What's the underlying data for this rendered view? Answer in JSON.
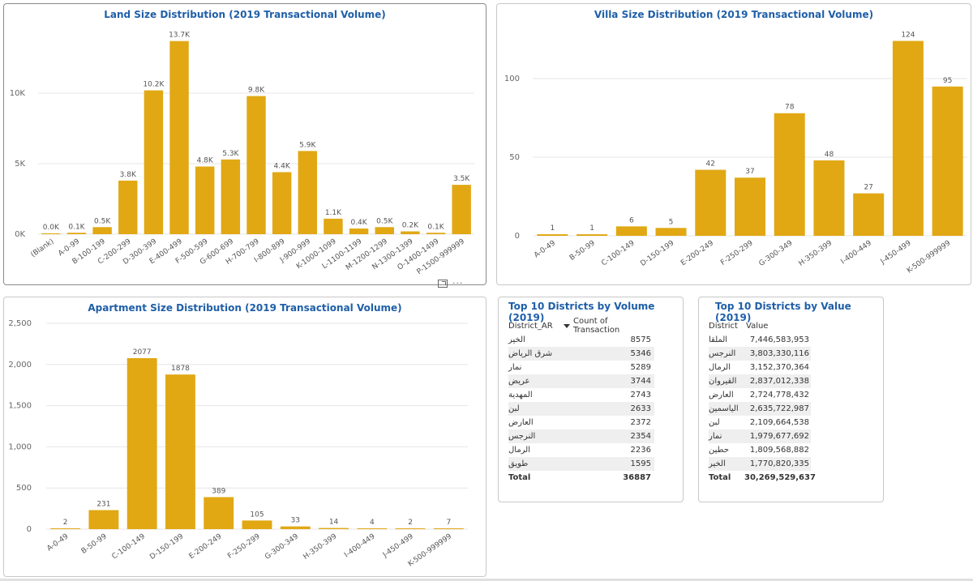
{
  "chart_data": [
    {
      "type": "bar",
      "title": "Land Size Distribution (2019 Transactional Volume)",
      "categories": [
        "(Blank)",
        "A-0-99",
        "B-100-199",
        "C-200-299",
        "D-300-399",
        "E-400-499",
        "F-500-599",
        "G-600-699",
        "H-700-799",
        "I-800-899",
        "J-900-999",
        "K-1000-1099",
        "L-1100-1199",
        "M-1200-1299",
        "N-1300-1399",
        "O-1400-1499",
        "P-1500-999999"
      ],
      "values": [
        0.03,
        0.1,
        0.5,
        3.8,
        10.2,
        13.7,
        4.8,
        5.3,
        9.8,
        4.4,
        5.9,
        1.1,
        0.4,
        0.5,
        0.2,
        0.1,
        3.5
      ],
      "data_labels": [
        "0.0K",
        "0.1K",
        "0.5K",
        "3.8K",
        "10.2K",
        "13.7K",
        "4.8K",
        "5.3K",
        "9.8K",
        "4.4K",
        "5.9K",
        "1.1K",
        "0.4K",
        "0.5K",
        "0.2K",
        "0.1K",
        "3.5K"
      ],
      "yticks": [
        0,
        5,
        10
      ],
      "ytick_labels": [
        "0K",
        "5K",
        "10K"
      ],
      "ylim": [
        0,
        14.6
      ],
      "xlabel": "",
      "ylabel": "",
      "grid": true
    },
    {
      "type": "bar",
      "title": "Villa Size Distribution (2019 Transactional Volume)",
      "categories": [
        "A-0-49",
        "B-50-99",
        "C-100-149",
        "D-150-199",
        "E-200-249",
        "F-250-299",
        "G-300-349",
        "H-350-399",
        "I-400-449",
        "J-450-499",
        "K-500-999999"
      ],
      "values": [
        1,
        1,
        6,
        5,
        42,
        37,
        78,
        48,
        27,
        124,
        95
      ],
      "data_labels": [
        "1",
        "1",
        "6",
        "5",
        "42",
        "37",
        "78",
        "48",
        "27",
        "124",
        "95"
      ],
      "yticks": [
        0,
        50,
        100
      ],
      "ytick_labels": [
        "0",
        "50",
        "100"
      ],
      "ylim": [
        0,
        132
      ],
      "xlabel": "",
      "ylabel": "",
      "grid": true
    },
    {
      "type": "bar",
      "title": "Apartment Size Distribution (2019 Transactional Volume)",
      "categories": [
        "A-0-49",
        "B-50-99",
        "C-100-149",
        "D-150-199",
        "E-200-249",
        "F-250-299",
        "G-300-349",
        "H-350-399",
        "I-400-449",
        "J-450-499",
        "K-500-999999"
      ],
      "values": [
        2,
        231,
        2077,
        1878,
        389,
        105,
        33,
        14,
        4,
        2,
        7
      ],
      "data_labels": [
        "2",
        "231",
        "2077",
        "1878",
        "389",
        "105",
        "33",
        "14",
        "4",
        "2",
        "7"
      ],
      "yticks": [
        0,
        500,
        1000,
        1500,
        2000,
        2500
      ],
      "ytick_labels": [
        "0",
        "500",
        "1,000",
        "1,500",
        "2,000",
        "2,500"
      ],
      "ylim": [
        0,
        2500
      ],
      "xlabel": "",
      "ylabel": "",
      "grid": true
    },
    {
      "type": "table",
      "title": "Top 10 Districts by Volume (2019)",
      "columns": [
        "District_AR",
        "Count of Transaction"
      ],
      "rows": [
        [
          "الخير",
          "8575"
        ],
        [
          "شرق الرياض",
          "5346"
        ],
        [
          "نمار",
          "5289"
        ],
        [
          "عريض",
          "3744"
        ],
        [
          "المهدية",
          "2743"
        ],
        [
          "لبن",
          "2633"
        ],
        [
          "العارض",
          "2372"
        ],
        [
          "النرجس",
          "2354"
        ],
        [
          "الرمال",
          "2236"
        ],
        [
          "طويق",
          "1595"
        ]
      ],
      "total_label": "Total",
      "total_value": "36887"
    },
    {
      "type": "table",
      "title": "Top 10 Districts by Value (2019)",
      "columns": [
        "District",
        "Value"
      ],
      "rows": [
        [
          "الملقا",
          "7,446,583,953"
        ],
        [
          "النرجس",
          "3,803,330,116"
        ],
        [
          "الرمال",
          "3,152,370,364"
        ],
        [
          "القيروان",
          "2,837,012,338"
        ],
        [
          "العارض",
          "2,724,778,432"
        ],
        [
          "الياسمين",
          "2,635,722,987"
        ],
        [
          "لبن",
          "2,109,664,538"
        ],
        [
          "نمار",
          "1,979,677,692"
        ],
        [
          "حطين",
          "1,809,568,882"
        ],
        [
          "الخير",
          "1,770,820,335"
        ]
      ],
      "total_label": "Total",
      "total_value": "30,269,529,637"
    }
  ],
  "toolbar": {
    "focus_icon": "focus-mode-icon",
    "more_icon": "more-options-icon",
    "more_glyph": "···"
  }
}
